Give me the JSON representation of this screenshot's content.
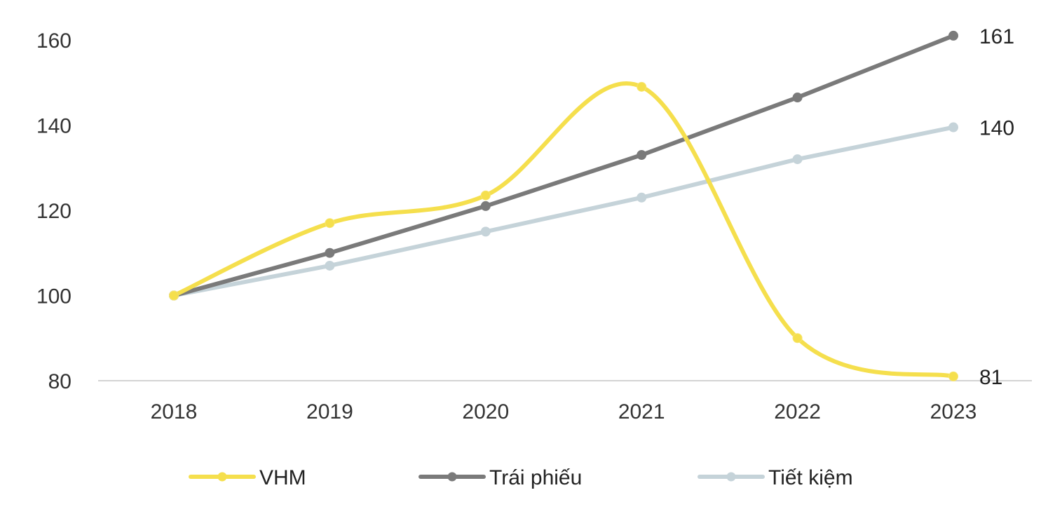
{
  "chart_data": {
    "type": "line",
    "title": "",
    "xlabel": "",
    "ylabel": "",
    "categories": [
      "2018",
      "2019",
      "2020",
      "2021",
      "2022",
      "2023"
    ],
    "ylim": [
      80,
      160
    ],
    "yticks": [
      80,
      100,
      120,
      140,
      160
    ],
    "grid": false,
    "legend_position": "bottom",
    "series": [
      {
        "name": "VHM",
        "values": [
          100,
          117,
          123.5,
          149,
          90,
          81
        ],
        "color": "#F5DF4D",
        "smooth": true,
        "end_label": "81"
      },
      {
        "name": "Trái phiếu",
        "values": [
          100,
          110,
          121,
          133,
          146.5,
          161
        ],
        "color": "#7A7A7A",
        "smooth": false,
        "end_label": "161"
      },
      {
        "name": "Tiết kiệm",
        "values": [
          100,
          107,
          115,
          123,
          132,
          139.5
        ],
        "color": "#C5D3D9",
        "smooth": false,
        "end_label": "140"
      }
    ]
  }
}
